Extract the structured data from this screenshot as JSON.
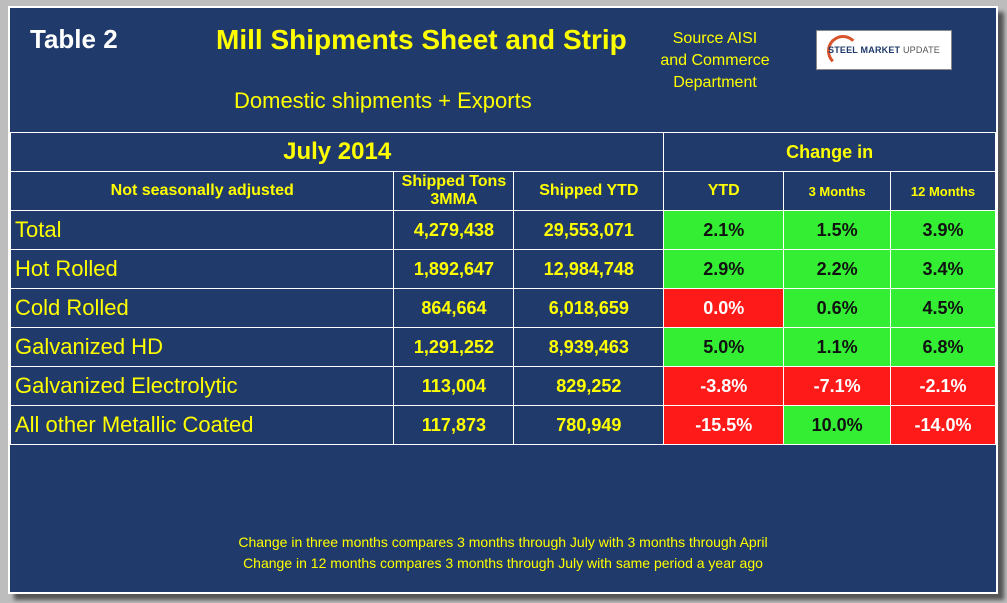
{
  "header": {
    "table_number": "Table 2",
    "title": "Mill Shipments Sheet and Strip",
    "subtitle": "Domestic shipments + Exports",
    "source": "Source AISI and Commerce Department",
    "logo_text_1": "STEEL MARKET",
    "logo_text_2": "UPDATE"
  },
  "table": {
    "period": "July 2014",
    "change_in": "Change in",
    "columns": {
      "label": "Not seasonally adjusted",
      "tons_3mma": "Shipped Tons 3MMA",
      "ytd_shipped": "Shipped YTD",
      "ytd_change": "YTD",
      "three_months": "3 Months",
      "twelve_months": "12 Months"
    },
    "rows": [
      {
        "label": "Total",
        "tons": "4,279,438",
        "ytd": "29,553,071",
        "chg_ytd": "2.1%",
        "chg_3m": "1.5%",
        "chg_12m": "3.9%"
      },
      {
        "label": "Hot Rolled",
        "tons": "1,892,647",
        "ytd": "12,984,748",
        "chg_ytd": "2.9%",
        "chg_3m": "2.2%",
        "chg_12m": "3.4%"
      },
      {
        "label": "Cold Rolled",
        "tons": "864,664",
        "ytd": "6,018,659",
        "chg_ytd": "0.0%",
        "chg_3m": "0.6%",
        "chg_12m": "4.5%"
      },
      {
        "label": "Galvanized HD",
        "tons": "1,291,252",
        "ytd": "8,939,463",
        "chg_ytd": "5.0%",
        "chg_3m": "1.1%",
        "chg_12m": "6.8%"
      },
      {
        "label": "Galvanized Electrolytic",
        "tons": "113,004",
        "ytd": "829,252",
        "chg_ytd": "-3.8%",
        "chg_3m": "-7.1%",
        "chg_12m": "-2.1%"
      },
      {
        "label": "All other Metallic Coated",
        "tons": "117,873",
        "ytd": "780,949",
        "chg_ytd": "-15.5%",
        "chg_3m": "10.0%",
        "chg_12m": "-14.0%"
      }
    ]
  },
  "footer": {
    "note_1": "Change in three months compares 3 months through July with 3 months through April",
    "note_2": "Change in 12 months compares 3 months through July with same period a year ago"
  },
  "colors": {
    "background": "#1f3a6b",
    "text_highlight": "#ffff00",
    "positive": "#33ee33",
    "negative": "#ff1a1a"
  }
}
